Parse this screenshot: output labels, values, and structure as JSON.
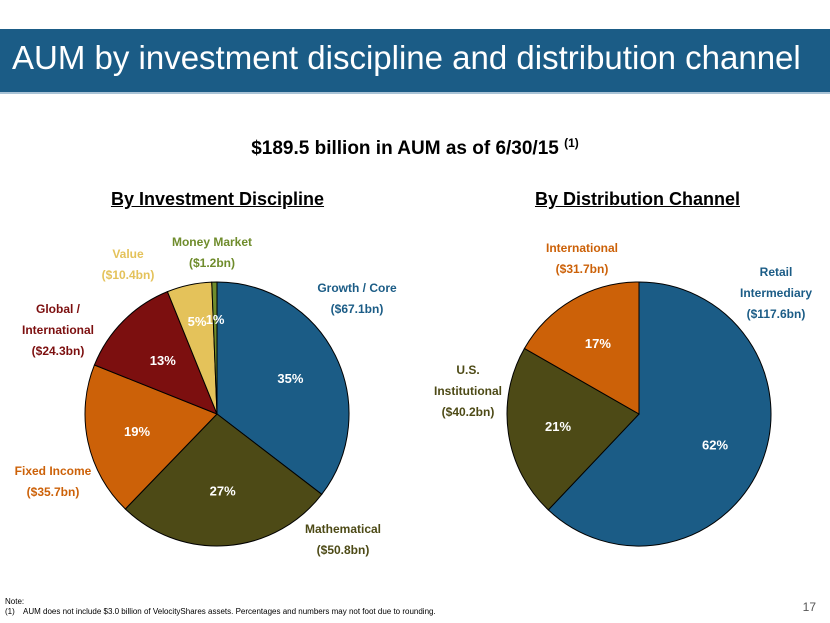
{
  "header": {
    "title": "AUM by investment discipline and distribution channel"
  },
  "summary": {
    "text": "$189.5 billion in AUM as of 6/30/15",
    "note_ref": "(1)"
  },
  "chart_data": [
    {
      "type": "pie",
      "title": "By Investment Discipline",
      "series": [
        {
          "name": "Growth / Core",
          "value_label": "($67.1bn)",
          "value": 67.1,
          "percent": 35,
          "percent_label": "35%",
          "color": "#1b5c86"
        },
        {
          "name": "Mathematical",
          "value_label": "($50.8bn)",
          "value": 50.8,
          "percent": 27,
          "percent_label": "27%",
          "color": "#4d4a16"
        },
        {
          "name": "Fixed Income",
          "value_label": "($35.7bn)",
          "value": 35.7,
          "percent": 19,
          "percent_label": "19%",
          "color": "#cc6108"
        },
        {
          "name": "Global / International",
          "value_label": "($24.3bn)",
          "value": 24.3,
          "percent": 13,
          "percent_label": "13%",
          "color": "#7c0f0f"
        },
        {
          "name": "Value",
          "value_label": "($10.4bn)",
          "value": 10.4,
          "percent": 5,
          "percent_label": "5%",
          "color": "#e4c25a"
        },
        {
          "name": "Money Market",
          "value_label": "($1.2bn)",
          "value": 1.2,
          "percent": 1,
          "percent_label": "1%",
          "color": "#6f8c2c"
        }
      ]
    },
    {
      "type": "pie",
      "title": "By Distribution Channel",
      "series": [
        {
          "name": "Retail Intermediary",
          "value_label": "($117.6bn)",
          "value": 117.6,
          "percent": 62,
          "percent_label": "62%",
          "color": "#1b5c86"
        },
        {
          "name": "U.S. Institutional",
          "value_label": "($40.2bn)",
          "value": 40.2,
          "percent": 21,
          "percent_label": "21%",
          "color": "#4d4a16"
        },
        {
          "name": "International",
          "value_label": "($31.7bn)",
          "value": 31.7,
          "percent": 17,
          "percent_label": "17%",
          "color": "#cc6108"
        }
      ]
    }
  ],
  "footnote": {
    "heading": "Note:",
    "index": "(1)",
    "text": "AUM does not include $3.0 billion of VelocityShares assets. Percentages and numbers may not foot due to rounding."
  },
  "page_number": "17"
}
